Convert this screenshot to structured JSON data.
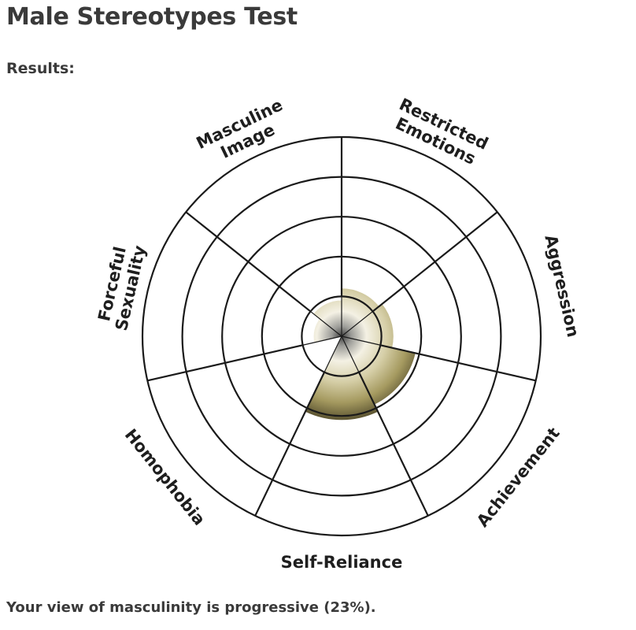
{
  "page": {
    "title": "Male Stereotypes Test",
    "results_label": "Results:",
    "result_text": "Your view of masculinity is progressive (23%)."
  },
  "chart_data": {
    "type": "polar-area",
    "title": "",
    "axes": [
      {
        "label_lines": [
          "Restricted",
          "Emotions"
        ],
        "value": 1.2
      },
      {
        "label_lines": [
          "Aggression"
        ],
        "value": 1.3
      },
      {
        "label_lines": [
          "Achievement"
        ],
        "value": 1.9
      },
      {
        "label_lines": [
          "Self-Reliance"
        ],
        "value": 2.1
      },
      {
        "label_lines": [
          "Homophobia"
        ],
        "value": 0
      },
      {
        "label_lines": [
          "Forceful",
          "Sexuality"
        ],
        "value": 0.7
      },
      {
        "label_lines": [
          "Masculine",
          "Image"
        ],
        "value": 0.9
      }
    ],
    "rings": 5,
    "max_value": 5,
    "fill_colors": {
      "light": "#f4f1e4",
      "mid": "#b9ad79",
      "dark": "#605834",
      "core": "#3f3f3f"
    },
    "grid_color": "#1a1a1a",
    "overall_percent": 23
  }
}
